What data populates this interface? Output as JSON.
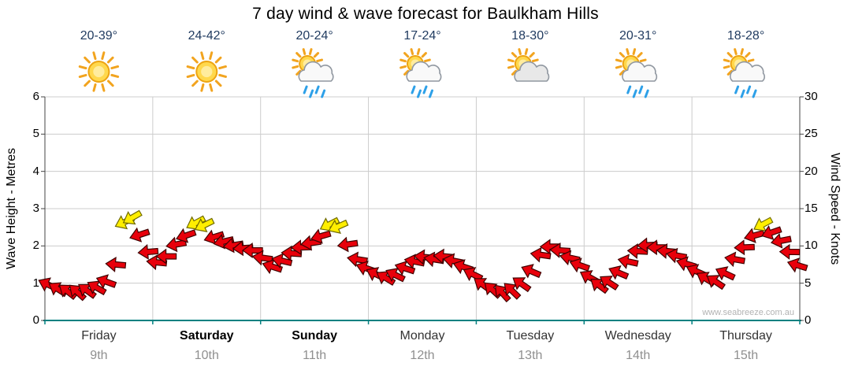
{
  "title": "7 day wind & wave forecast for Baulkham Hills",
  "watermark": "www.seabreeze.com.au",
  "colors": {
    "arrow_red": "#e8000b",
    "arrow_red_stroke": "#3f0000",
    "arrow_yellow": "#ffee00",
    "arrow_yellow_stroke": "#6f6a00",
    "grid": "#cccccc",
    "axis": "#444444",
    "baseline_teal": "#008080",
    "temp_label": "#1f3a5f",
    "day_label": "#333333",
    "weekend_label": "#000000",
    "date_label": "#8f8f8f",
    "watermark": "#b3b3b3",
    "rain_drop": "#2da0e8",
    "sun_core": "#ffd84d",
    "sun_ray": "#f2a41f"
  },
  "days": [
    {
      "name": "Friday",
      "date": "9th",
      "weekend": false,
      "temp": "20-39°",
      "icon": "sunny"
    },
    {
      "name": "Saturday",
      "date": "10th",
      "weekend": true,
      "temp": "24-42°",
      "icon": "sunny"
    },
    {
      "name": "Sunday",
      "date": "11th",
      "weekend": true,
      "temp": "20-24°",
      "icon": "sun-showers"
    },
    {
      "name": "Monday",
      "date": "12th",
      "weekend": false,
      "temp": "17-24°",
      "icon": "sun-showers"
    },
    {
      "name": "Tuesday",
      "date": "13th",
      "weekend": false,
      "temp": "18-30°",
      "icon": "partly-cloudy"
    },
    {
      "name": "Wednesday",
      "date": "14th",
      "weekend": false,
      "temp": "20-31°",
      "icon": "sun-showers"
    },
    {
      "name": "Thursday",
      "date": "15th",
      "weekend": false,
      "temp": "18-28°",
      "icon": "sun-showers"
    }
  ],
  "axes": {
    "left": {
      "title": "Wave Height - Metres",
      "range": [
        0,
        6
      ],
      "ticks": [
        0,
        1,
        2,
        3,
        4,
        5,
        6
      ]
    },
    "right": {
      "title": "Wind Speed - Knots",
      "range": [
        0,
        30
      ],
      "ticks": [
        0,
        5,
        10,
        15,
        20,
        25,
        30
      ]
    }
  },
  "chart_data": {
    "type": "scatter",
    "marker": "wind-direction-arrow",
    "series_name": "Wind Speed",
    "x_unit": "days_from_start",
    "x_range": [
      0,
      7
    ],
    "y_unit": "knots",
    "y_range": [
      0,
      30
    ],
    "grid": true,
    "yellow_threshold_knots": 12.5,
    "points": [
      [
        0.03,
        4.8,
        205
      ],
      [
        0.12,
        4.2,
        212
      ],
      [
        0.21,
        3.9,
        218
      ],
      [
        0.3,
        3.8,
        222
      ],
      [
        0.39,
        4.0,
        216
      ],
      [
        0.48,
        4.4,
        210
      ],
      [
        0.57,
        5.2,
        200
      ],
      [
        0.66,
        7.5,
        185
      ],
      [
        0.74,
        13.2,
        155
      ],
      [
        0.81,
        13.8,
        150
      ],
      [
        0.88,
        11.5,
        162
      ],
      [
        0.96,
        9.2,
        175
      ],
      [
        1.04,
        7.8,
        186
      ],
      [
        1.13,
        8.6,
        180
      ],
      [
        1.22,
        10.2,
        170
      ],
      [
        1.31,
        11.4,
        161
      ],
      [
        1.4,
        13.1,
        152
      ],
      [
        1.48,
        12.8,
        154
      ],
      [
        1.57,
        11.2,
        163
      ],
      [
        1.66,
        10.6,
        167
      ],
      [
        1.75,
        10.1,
        171
      ],
      [
        1.84,
        9.7,
        176
      ],
      [
        1.93,
        9.4,
        180
      ],
      [
        2.02,
        8.4,
        188
      ],
      [
        2.11,
        7.2,
        198
      ],
      [
        2.2,
        8.0,
        193
      ],
      [
        2.29,
        9.0,
        184
      ],
      [
        2.38,
        9.8,
        178
      ],
      [
        2.47,
        10.4,
        172
      ],
      [
        2.56,
        11.3,
        164
      ],
      [
        2.64,
        12.9,
        153
      ],
      [
        2.72,
        12.6,
        156
      ],
      [
        2.81,
        10.2,
        172
      ],
      [
        2.9,
        8.2,
        189
      ],
      [
        2.98,
        7.0,
        199
      ],
      [
        3.07,
        6.2,
        206
      ],
      [
        3.16,
        5.7,
        211
      ],
      [
        3.25,
        6.1,
        206
      ],
      [
        3.34,
        7.0,
        198
      ],
      [
        3.43,
        7.9,
        191
      ],
      [
        3.52,
        8.5,
        186
      ],
      [
        3.61,
        8.2,
        189
      ],
      [
        3.7,
        8.6,
        185
      ],
      [
        3.79,
        8.0,
        191
      ],
      [
        3.88,
        7.2,
        198
      ],
      [
        3.97,
        6.2,
        206
      ],
      [
        4.06,
        4.8,
        216
      ],
      [
        4.15,
        4.1,
        223
      ],
      [
        4.24,
        3.7,
        228
      ],
      [
        4.33,
        4.0,
        224
      ],
      [
        4.42,
        4.9,
        215
      ],
      [
        4.51,
        6.6,
        203
      ],
      [
        4.6,
        8.8,
        188
      ],
      [
        4.69,
        9.9,
        180
      ],
      [
        4.78,
        9.4,
        184
      ],
      [
        4.87,
        8.4,
        192
      ],
      [
        4.96,
        7.4,
        199
      ],
      [
        5.05,
        5.8,
        209
      ],
      [
        5.14,
        4.7,
        217
      ],
      [
        5.23,
        5.1,
        213
      ],
      [
        5.32,
        6.4,
        203
      ],
      [
        5.41,
        7.9,
        192
      ],
      [
        5.5,
        9.3,
        183
      ],
      [
        5.59,
        10.1,
        177
      ],
      [
        5.68,
        9.8,
        180
      ],
      [
        5.77,
        9.3,
        185
      ],
      [
        5.86,
        8.7,
        190
      ],
      [
        5.95,
        7.6,
        197
      ],
      [
        6.04,
        6.6,
        204
      ],
      [
        6.13,
        5.6,
        211
      ],
      [
        6.22,
        5.2,
        214
      ],
      [
        6.31,
        6.3,
        205
      ],
      [
        6.4,
        8.2,
        190
      ],
      [
        6.49,
        9.8,
        178
      ],
      [
        6.58,
        11.4,
        165
      ],
      [
        6.66,
        12.9,
        152
      ],
      [
        6.74,
        11.8,
        161
      ],
      [
        6.83,
        10.7,
        169
      ],
      [
        6.91,
        9.2,
        181
      ],
      [
        6.98,
        7.4,
        197
      ]
    ]
  }
}
